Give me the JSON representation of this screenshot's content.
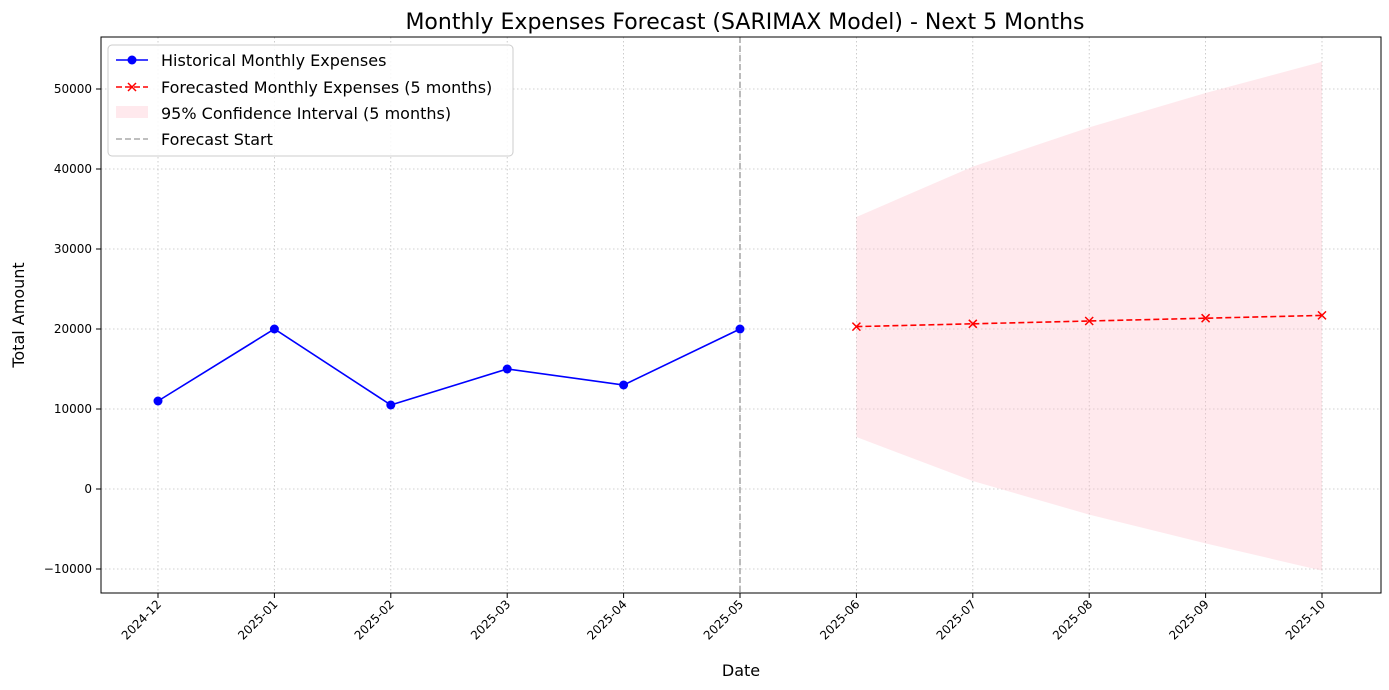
{
  "chart_data": {
    "type": "line",
    "title": "Monthly Expenses Forecast (SARIMAX Model) - Next 5 Months",
    "xlabel": "Date",
    "ylabel": "Total Amount",
    "x_ticks": [
      "2024-12",
      "2025-01",
      "2025-02",
      "2025-03",
      "2025-04",
      "2025-05",
      "2025-06",
      "2025-07",
      "2025-08",
      "2025-09",
      "2025-10"
    ],
    "y_ticks": [
      -10000,
      0,
      10000,
      20000,
      30000,
      40000,
      50000
    ],
    "y_tick_labels": [
      "−10000",
      "0",
      "10000",
      "20000",
      "30000",
      "40000",
      "50000"
    ],
    "ylim": [
      -13000,
      56500
    ],
    "grid": true,
    "legend_position": "top-left",
    "series": [
      {
        "name": "Historical Monthly Expenses",
        "style": "solid",
        "marker": "circle",
        "color": "#0000ff",
        "x": [
          "2024-12",
          "2025-01",
          "2025-02",
          "2025-03",
          "2025-04",
          "2025-05"
        ],
        "values": [
          11000,
          20000,
          10500,
          15000,
          13000,
          20000
        ]
      },
      {
        "name": "Forecasted Monthly Expenses (5 months)",
        "style": "dashed",
        "marker": "x",
        "color": "#ff0000",
        "x": [
          "2025-06",
          "2025-07",
          "2025-08",
          "2025-09",
          "2025-10"
        ],
        "values": [
          20300,
          20650,
          21000,
          21350,
          21700
        ]
      }
    ],
    "confidence_interval": {
      "name": "95% Confidence Interval (5 months)",
      "color": "#ffc0cb",
      "x": [
        "2025-06",
        "2025-07",
        "2025-08",
        "2025-09",
        "2025-10"
      ],
      "lower": [
        6500,
        1000,
        -3200,
        -6800,
        -10200
      ],
      "upper": [
        34000,
        40300,
        45200,
        49500,
        53400
      ]
    },
    "forecast_start": {
      "name": "Forecast Start",
      "x": "2025-05",
      "color": "#aaaaaa"
    }
  }
}
